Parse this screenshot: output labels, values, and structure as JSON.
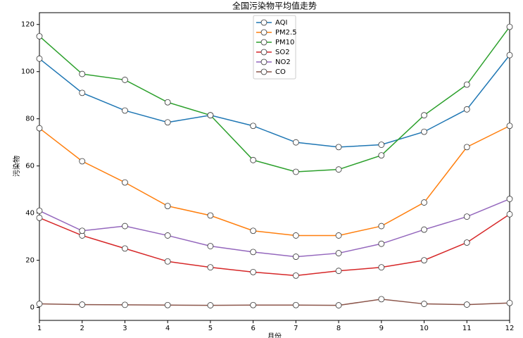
{
  "chart_data": {
    "type": "line",
    "title": "全国污染物平均值走势",
    "x_label": "月份",
    "y_label": "污染物",
    "x": [
      1,
      2,
      3,
      4,
      5,
      6,
      7,
      8,
      9,
      10,
      11,
      12
    ],
    "xlim": [
      1,
      12
    ],
    "xticks": [
      1,
      2,
      3,
      4,
      5,
      6,
      7,
      8,
      9,
      10,
      11,
      12
    ],
    "ylim": [
      -5.5,
      125
    ],
    "yticks": [
      0,
      20,
      40,
      60,
      80,
      100,
      120
    ],
    "legend": "upper center",
    "series": [
      {
        "name": "AQI",
        "color": "#1f77b4",
        "values": [
          105.5,
          91,
          83.5,
          78.5,
          81.5,
          77,
          70,
          68,
          69,
          74.5,
          84,
          107
        ]
      },
      {
        "name": "PM2.5",
        "color": "#ff7f0e",
        "values": [
          76,
          62,
          53,
          43,
          39,
          32.5,
          30.5,
          30.5,
          34.5,
          44.5,
          68,
          77
        ]
      },
      {
        "name": "PM10",
        "color": "#2ca02c",
        "values": [
          115,
          99,
          96.5,
          87,
          81.5,
          62.5,
          57.5,
          58.5,
          64.5,
          81.5,
          94.5,
          119
        ]
      },
      {
        "name": "SO2",
        "color": "#d62728",
        "values": [
          38,
          30.5,
          25,
          19.5,
          17,
          15,
          13.5,
          15.5,
          17,
          20,
          27.5,
          39.5
        ]
      },
      {
        "name": "NO2",
        "color": "#9467bd",
        "values": [
          41,
          32.5,
          34.5,
          30.5,
          26,
          23.5,
          21.5,
          23,
          27,
          33,
          38.5,
          46
        ]
      },
      {
        "name": "CO",
        "color": "#8c564b",
        "values": [
          1.5,
          1.2,
          1.1,
          1.0,
          0.9,
          1.0,
          1.0,
          0.9,
          3.5,
          1.5,
          1.2,
          1.9
        ]
      }
    ]
  }
}
